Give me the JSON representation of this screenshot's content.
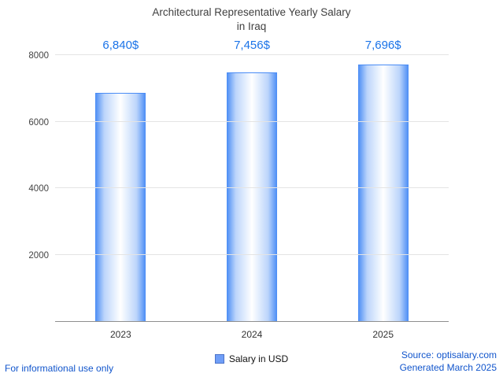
{
  "title": {
    "line1": "Architectural Representative Yearly Salary",
    "line2": "in Iraq"
  },
  "chart_data": {
    "type": "bar",
    "title": "Architectural Representative Yearly Salary in Iraq",
    "categories": [
      "2023",
      "2024",
      "2025"
    ],
    "values": [
      6840,
      7456,
      7696
    ],
    "value_labels": [
      "6,840$",
      "7,456$",
      "7,696$"
    ],
    "ylabel": "",
    "xlabel": "",
    "ylim": [
      0,
      8000
    ],
    "yticks": [
      2000,
      4000,
      6000,
      8000
    ],
    "grid": true,
    "legend_position": "bottom",
    "legend_entries": [
      "Salary in USD"
    ]
  },
  "legend": {
    "label": "Salary in USD"
  },
  "footer": {
    "informational": "For informational use only",
    "source": "Source: optisalary.com",
    "generated": "Generated March 2025"
  },
  "colors": {
    "value_label_blue": "#1a73e8",
    "bar_edge_blue": "#4a8cf5",
    "footer_link_blue": "#1155cc",
    "gridline_gray": "#e4e4e4"
  }
}
